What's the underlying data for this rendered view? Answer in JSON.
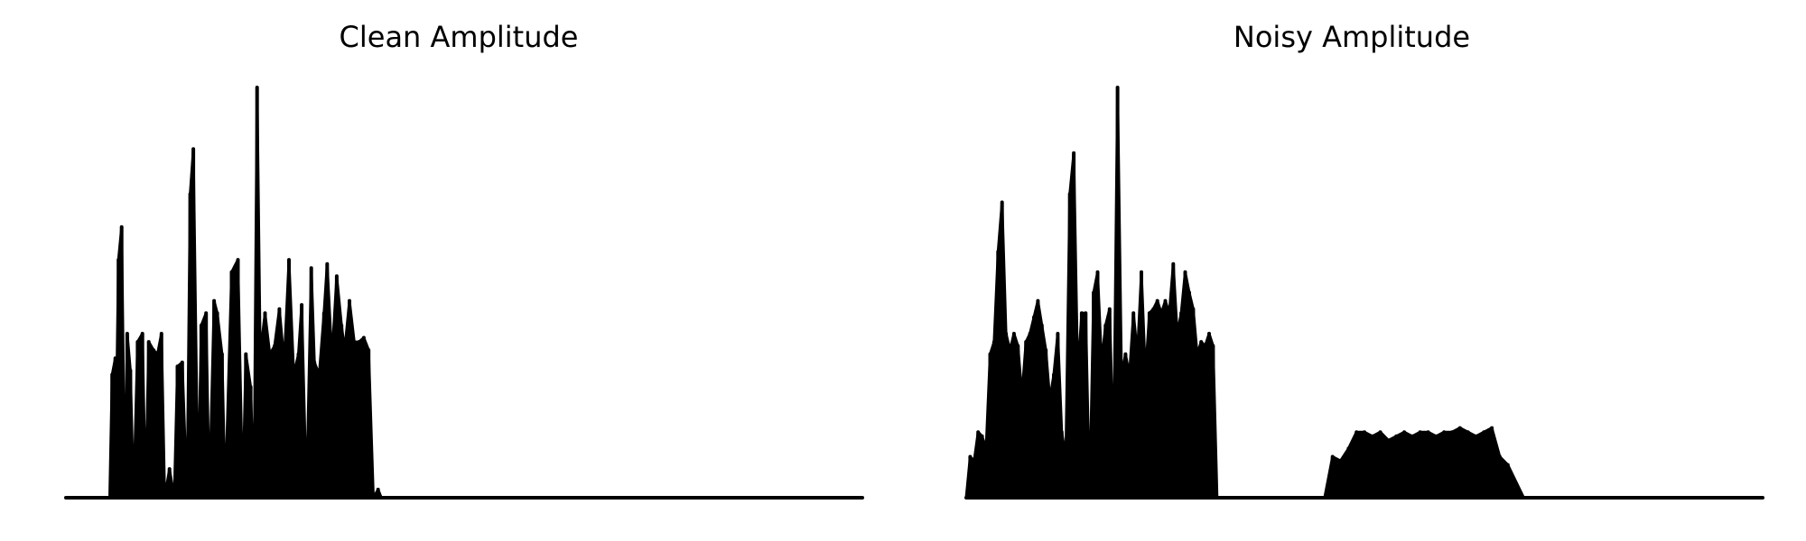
{
  "chart_data": [
    {
      "type": "area",
      "title": "Clean Amplitude",
      "xlabel": "",
      "ylabel": "",
      "grid": false,
      "axes_visible": false,
      "xlim": [
        0,
        1000
      ],
      "ylim": [
        0,
        1.0
      ],
      "line_color": "#000000",
      "x": [
        0,
        55,
        58,
        62,
        64,
        66,
        70,
        74,
        77,
        81,
        85,
        90,
        96,
        100,
        104,
        110,
        115,
        120,
        124,
        130,
        136,
        140,
        146,
        152,
        156,
        160,
        166,
        170,
        176,
        180,
        186,
        190,
        196,
        200,
        208,
        216,
        222,
        226,
        232,
        236,
        240,
        244,
        250,
        256,
        262,
        268,
        274,
        280,
        286,
        292,
        296,
        302,
        308,
        312,
        318,
        324,
        328,
        334,
        340,
        346,
        350,
        356,
        362,
        368,
        374,
        380,
        386,
        392,
        396,
        402,
        406,
        410,
        416,
        420,
        430,
        440,
        460,
        500,
        600,
        700,
        800,
        900,
        1000
      ],
      "series": [
        {
          "values": [
            0,
            0,
            0.3,
            0.34,
            0.3,
            0.58,
            0.66,
            0.0,
            0.4,
            0.31,
            0.0,
            0.38,
            0.4,
            0.0,
            0.38,
            0.36,
            0.35,
            0.4,
            0.0,
            0.07,
            0.0,
            0.32,
            0.33,
            0.0,
            0.74,
            0.85,
            0.0,
            0.42,
            0.45,
            0.0,
            0.48,
            0.45,
            0.35,
            0.0,
            0.55,
            0.58,
            0.0,
            0.35,
            0.27,
            0.0,
            1.0,
            0.35,
            0.45,
            0.35,
            0.37,
            0.46,
            0.33,
            0.58,
            0.3,
            0.35,
            0.47,
            0.0,
            0.56,
            0.33,
            0.3,
            0.45,
            0.57,
            0.34,
            0.54,
            0.42,
            0.36,
            0.48,
            0.38,
            0.38,
            0.39,
            0.36,
            0.0,
            0.02,
            0,
            0,
            0,
            0,
            0,
            0,
            0,
            0,
            0,
            0,
            0,
            0,
            0,
            0,
            0
          ]
        }
      ]
    },
    {
      "type": "area",
      "title": "Noisy Amplitude",
      "xlabel": "",
      "ylabel": "",
      "grid": false,
      "axes_visible": false,
      "xlim": [
        0,
        1000
      ],
      "ylim": [
        0,
        1.0
      ],
      "line_color": "#000000",
      "x": [
        0,
        5,
        10,
        15,
        20,
        25,
        30,
        35,
        40,
        45,
        50,
        55,
        60,
        65,
        70,
        75,
        80,
        85,
        90,
        95,
        100,
        105,
        110,
        115,
        120,
        125,
        130,
        135,
        140,
        145,
        150,
        155,
        160,
        165,
        170,
        175,
        180,
        185,
        190,
        195,
        200,
        205,
        210,
        215,
        220,
        225,
        230,
        235,
        240,
        245,
        250,
        255,
        260,
        265,
        270,
        275,
        280,
        285,
        290,
        295,
        300,
        305,
        310,
        315,
        320,
        325,
        330,
        335,
        340,
        345,
        350,
        355,
        360,
        365,
        370,
        375,
        380,
        385,
        390,
        395,
        400,
        405,
        410,
        415,
        420,
        425,
        430,
        440,
        450,
        460,
        470,
        480,
        490,
        500,
        510,
        520,
        530,
        540,
        550,
        560,
        570,
        580,
        590,
        600,
        610,
        620,
        630,
        640,
        650,
        660,
        670,
        680,
        700,
        750,
        800,
        850,
        900,
        950,
        1000
      ],
      "series": [
        {
          "values": [
            0,
            0.1,
            0.09,
            0.16,
            0.15,
            0.12,
            0.35,
            0.38,
            0.6,
            0.72,
            0.4,
            0.36,
            0.4,
            0.37,
            0.25,
            0.38,
            0.4,
            0.44,
            0.48,
            0.42,
            0.36,
            0.24,
            0.3,
            0.4,
            0.16,
            0.1,
            0.74,
            0.84,
            0.3,
            0.45,
            0.45,
            0.0,
            0.5,
            0.55,
            0.33,
            0.42,
            0.46,
            0.1,
            1.0,
            0.3,
            0.35,
            0.3,
            0.45,
            0.35,
            0.55,
            0.3,
            0.45,
            0.46,
            0.48,
            0.45,
            0.48,
            0.45,
            0.57,
            0.4,
            0.45,
            0.55,
            0.5,
            0.46,
            0.35,
            0.38,
            0.37,
            0.4,
            0.37,
            0.0,
            0.0,
            0.0,
            0.0,
            0.0,
            0.0,
            0.0,
            0.0,
            0.0,
            0.0,
            0.0,
            0.0,
            0.0,
            0.0,
            0.0,
            0.0,
            0.0,
            0.0,
            0.0,
            0.0,
            0.0,
            0.0,
            0.0,
            0.0,
            0.0,
            0.0,
            0.1,
            0.09,
            0.12,
            0.16,
            0.16,
            0.15,
            0.16,
            0.14,
            0.15,
            0.16,
            0.15,
            0.16,
            0.16,
            0.15,
            0.16,
            0.16,
            0.17,
            0.16,
            0.15,
            0.16,
            0.17,
            0.1,
            0.08,
            0.0,
            0.0,
            0.0,
            0.0,
            0.0,
            0.0,
            0.0
          ]
        }
      ]
    }
  ]
}
